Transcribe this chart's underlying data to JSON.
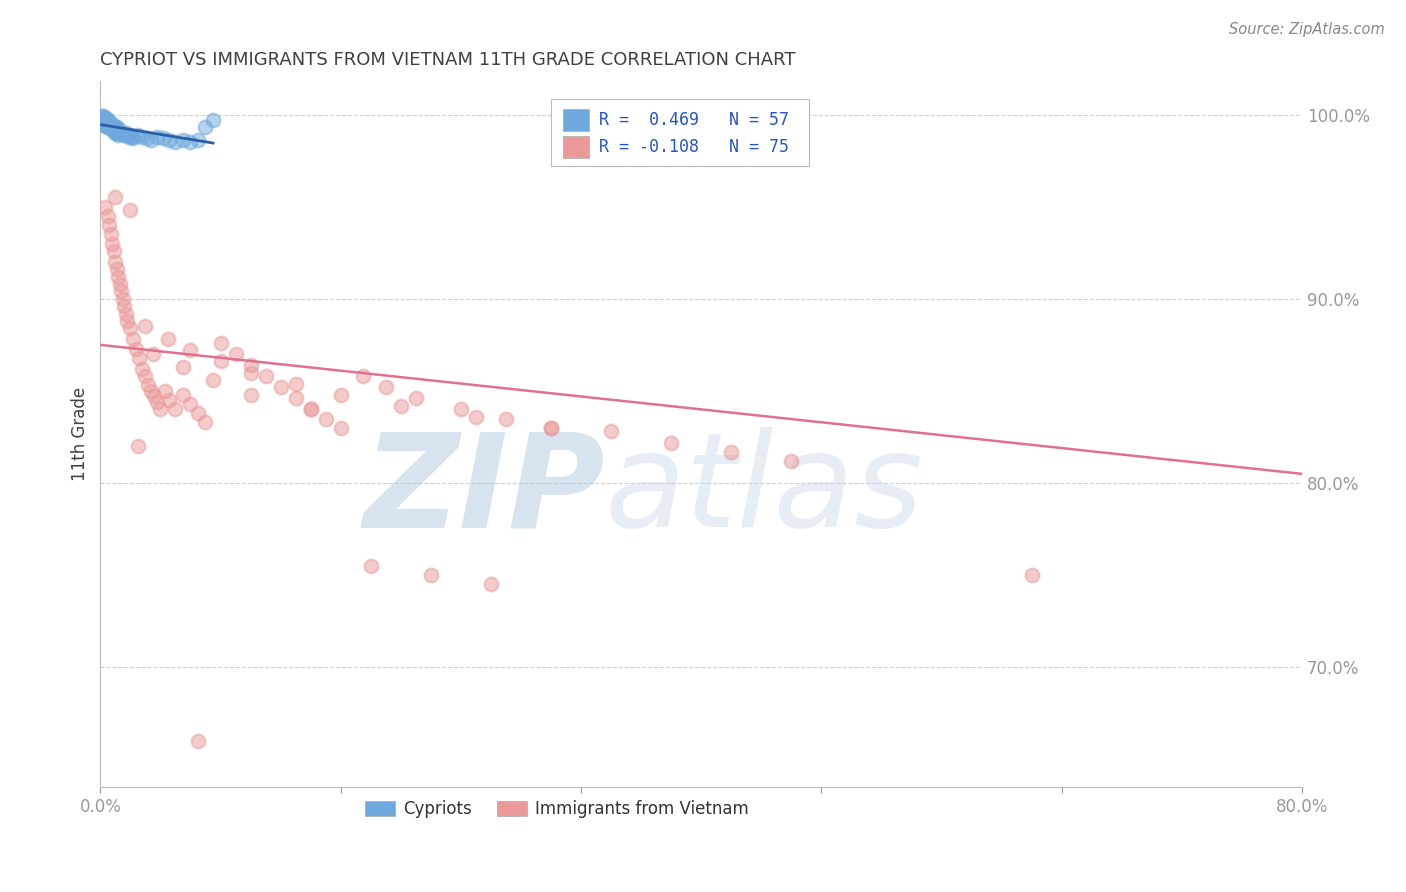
{
  "title": "CYPRIOT VS IMMIGRANTS FROM VIETNAM 11TH GRADE CORRELATION CHART",
  "source": "Source: ZipAtlas.com",
  "ylabel": "11th Grade",
  "xlim": [
    0.0,
    0.8
  ],
  "ylim": [
    0.635,
    1.018
  ],
  "yticks": [
    0.7,
    0.8,
    0.9,
    1.0
  ],
  "ytick_labels": [
    "70.0%",
    "80.0%",
    "90.0%",
    "100.0%"
  ],
  "xticks": [
    0.0,
    0.16,
    0.32,
    0.48,
    0.64,
    0.8
  ],
  "xtick_labels": [
    "0.0%",
    "",
    "",
    "",
    "",
    "80.0%"
  ],
  "legend_R_blue": "0.469",
  "legend_N_blue": "57",
  "legend_R_pink": "-0.108",
  "legend_N_pink": "75",
  "blue_color": "#6fa8dc",
  "pink_color": "#ea9999",
  "blue_line_color": "#2a5fa8",
  "pink_line_color": "#e07090",
  "title_color": "#404040",
  "axis_label_color": "#404040",
  "tick_color_y": "#4a90d9",
  "tick_color_x": "#4a90d9",
  "grid_color": "#d0d0d0",
  "background_color": "#ffffff",
  "watermark_zip": "ZIP",
  "watermark_atlas": "atlas",
  "blue_scatter_x": [
    0.001,
    0.001,
    0.001,
    0.002,
    0.002,
    0.002,
    0.002,
    0.003,
    0.003,
    0.003,
    0.003,
    0.004,
    0.004,
    0.004,
    0.004,
    0.005,
    0.005,
    0.005,
    0.006,
    0.006,
    0.006,
    0.007,
    0.007,
    0.007,
    0.008,
    0.008,
    0.009,
    0.009,
    0.01,
    0.01,
    0.011,
    0.011,
    0.012,
    0.012,
    0.013,
    0.014,
    0.015,
    0.016,
    0.017,
    0.018,
    0.019,
    0.02,
    0.021,
    0.022,
    0.025,
    0.028,
    0.031,
    0.034,
    0.038,
    0.042,
    0.046,
    0.05,
    0.055,
    0.06,
    0.065,
    0.07,
    0.075
  ],
  "blue_scatter_y": [
    0.999,
    0.998,
    0.997,
    0.999,
    0.998,
    0.997,
    0.995,
    0.998,
    0.997,
    0.996,
    0.994,
    0.998,
    0.997,
    0.996,
    0.994,
    0.997,
    0.996,
    0.994,
    0.996,
    0.995,
    0.993,
    0.995,
    0.994,
    0.992,
    0.995,
    0.992,
    0.994,
    0.991,
    0.993,
    0.99,
    0.993,
    0.99,
    0.992,
    0.989,
    0.991,
    0.99,
    0.99,
    0.989,
    0.99,
    0.989,
    0.988,
    0.989,
    0.988,
    0.987,
    0.989,
    0.988,
    0.987,
    0.986,
    0.988,
    0.987,
    0.986,
    0.985,
    0.986,
    0.985,
    0.986,
    0.993,
    0.997
  ],
  "pink_scatter_x": [
    0.003,
    0.005,
    0.006,
    0.007,
    0.008,
    0.009,
    0.01,
    0.011,
    0.012,
    0.013,
    0.014,
    0.015,
    0.016,
    0.017,
    0.018,
    0.02,
    0.022,
    0.024,
    0.026,
    0.028,
    0.03,
    0.032,
    0.034,
    0.036,
    0.038,
    0.04,
    0.043,
    0.046,
    0.05,
    0.055,
    0.06,
    0.065,
    0.07,
    0.08,
    0.09,
    0.1,
    0.11,
    0.12,
    0.13,
    0.14,
    0.15,
    0.16,
    0.175,
    0.19,
    0.21,
    0.24,
    0.27,
    0.3,
    0.34,
    0.38,
    0.42,
    0.46,
    0.01,
    0.02,
    0.03,
    0.045,
    0.06,
    0.08,
    0.1,
    0.13,
    0.16,
    0.2,
    0.25,
    0.3,
    0.035,
    0.055,
    0.075,
    0.1,
    0.14,
    0.18,
    0.22,
    0.26,
    0.62,
    0.025,
    0.065
  ],
  "pink_scatter_y": [
    0.95,
    0.945,
    0.94,
    0.935,
    0.93,
    0.926,
    0.92,
    0.916,
    0.912,
    0.908,
    0.904,
    0.9,
    0.896,
    0.892,
    0.888,
    0.884,
    0.878,
    0.873,
    0.868,
    0.862,
    0.858,
    0.853,
    0.85,
    0.847,
    0.844,
    0.84,
    0.85,
    0.845,
    0.84,
    0.848,
    0.843,
    0.838,
    0.833,
    0.876,
    0.87,
    0.864,
    0.858,
    0.852,
    0.846,
    0.84,
    0.835,
    0.83,
    0.858,
    0.852,
    0.846,
    0.84,
    0.835,
    0.83,
    0.828,
    0.822,
    0.817,
    0.812,
    0.955,
    0.948,
    0.885,
    0.878,
    0.872,
    0.866,
    0.86,
    0.854,
    0.848,
    0.842,
    0.836,
    0.83,
    0.87,
    0.863,
    0.856,
    0.848,
    0.84,
    0.755,
    0.75,
    0.745,
    0.75,
    0.82,
    0.66
  ]
}
